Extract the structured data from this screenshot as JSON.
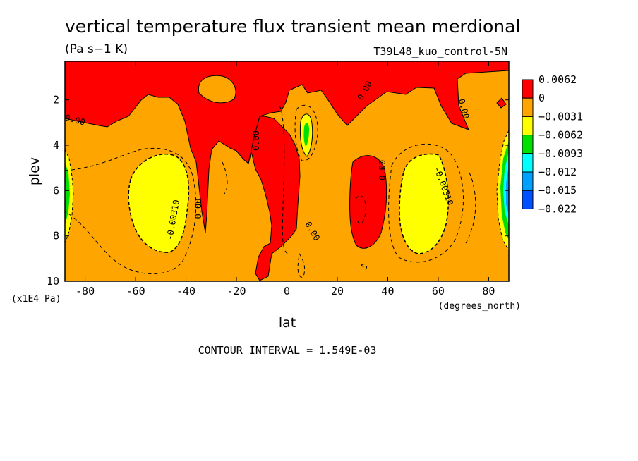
{
  "chart_data": {
    "type": "heatmap",
    "title": "vertical temperature flux transient mean merdional",
    "units": "(Pa s−1 K)",
    "dataset": "T39L48_kuo_control-5N",
    "xlabel": "lat",
    "xunits": "(degrees_north)",
    "ylabel": "plev",
    "yunits": "(x1E4 Pa)",
    "xlim": [
      -88,
      88
    ],
    "ylim": [
      0.3,
      10
    ],
    "y_inverted": true,
    "x_ticks": [
      "-80",
      "-60",
      "-40",
      "-20",
      "0",
      "20",
      "40",
      "60",
      "80"
    ],
    "x_tick_values": [
      -80,
      -60,
      -40,
      -20,
      0,
      20,
      40,
      60,
      80
    ],
    "y_ticks": [
      "2",
      "4",
      "6",
      "8",
      "10"
    ],
    "y_tick_values": [
      2,
      4,
      6,
      8,
      10
    ],
    "legend": {
      "position": "right",
      "labels": [
        "0.0062",
        "0",
        "−0.0031",
        "−0.0062",
        "−0.0093",
        "−0.012",
        "−0.015",
        "−0.022"
      ],
      "colors": [
        "#ff0000",
        "#ffa500",
        "#ffff00",
        "#00e000",
        "#00ffff",
        "#00a0ff",
        "#0050ff"
      ]
    },
    "contour_labels": [
      {
        "text": "0.00",
        "lat": -84,
        "plev": 2.9,
        "rot": 15
      },
      {
        "text": "0.00",
        "lat": -35,
        "plev": 6.8,
        "rot": -90
      },
      {
        "text": "-0.00310",
        "lat": -45,
        "plev": 7.3,
        "rot": -80
      },
      {
        "text": "0.00",
        "lat": -12,
        "plev": 3.8,
        "rot": -90
      },
      {
        "text": "0.00",
        "lat": 10,
        "plev": 7.8,
        "rot": 60
      },
      {
        "text": "0.00",
        "lat": 31,
        "plev": 1.6,
        "rot": -60
      },
      {
        "text": "0.00",
        "lat": 38,
        "plev": 5.1,
        "rot": -90
      },
      {
        "text": "-0.00310",
        "lat": 62,
        "plev": 5.8,
        "rot": 70
      },
      {
        "text": "0.00",
        "lat": 70,
        "plev": 2.4,
        "rot": 75
      }
    ],
    "footer": "CONTOUR INTERVAL = 1.549E-03"
  }
}
